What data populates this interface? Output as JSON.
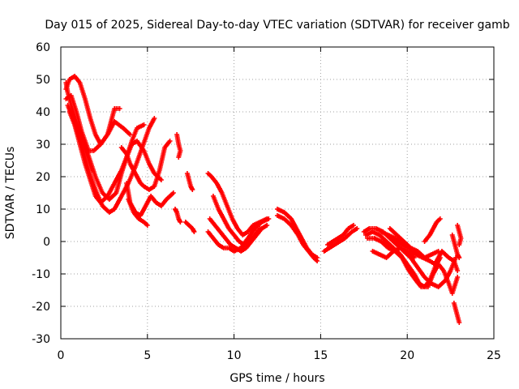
{
  "chart_data": {
    "type": "scatter",
    "title": "Day 015 of 2025, Sidereal Day-to-day VTEC variation (SDTVAR) for receiver gamb",
    "xlabel": "GPS time / hours",
    "ylabel": "SDTVAR / TECUs",
    "xlim": [
      0,
      25
    ],
    "ylim": [
      -30,
      60
    ],
    "xticks": [
      "0",
      "5",
      "10",
      "15",
      "20",
      "25"
    ],
    "yticks": [
      "-30",
      "-20",
      "-10",
      "0",
      "10",
      "20",
      "30",
      "40",
      "50",
      "60"
    ],
    "grid": true,
    "marker": "plus",
    "color": "#ff0000",
    "tracks": [
      [
        [
          0.3,
          49
        ],
        [
          0.4,
          46
        ],
        [
          0.6,
          42
        ],
        [
          0.9,
          37
        ],
        [
          1.2,
          32
        ],
        [
          1.5,
          27
        ],
        [
          1.8,
          22
        ]
      ],
      [
        [
          0.3,
          47
        ],
        [
          0.5,
          50
        ],
        [
          0.8,
          51
        ],
        [
          1.1,
          49
        ],
        [
          1.4,
          44
        ],
        [
          1.7,
          38
        ],
        [
          2.0,
          33
        ],
        [
          2.3,
          30
        ],
        [
          2.7,
          33
        ],
        [
          3.1,
          37
        ],
        [
          3.6,
          35
        ],
        [
          4.0,
          33
        ]
      ],
      [
        [
          0.3,
          44
        ],
        [
          0.6,
          45
        ],
        [
          0.9,
          40
        ],
        [
          1.2,
          34
        ],
        [
          1.6,
          28
        ],
        [
          1.9,
          28
        ],
        [
          2.3,
          30
        ],
        [
          2.7,
          33
        ],
        [
          3.1,
          41
        ],
        [
          3.4,
          41
        ]
      ],
      [
        [
          0.4,
          42
        ],
        [
          0.7,
          38
        ],
        [
          1.0,
          33
        ],
        [
          1.3,
          28
        ],
        [
          1.6,
          22
        ],
        [
          2.0,
          16
        ],
        [
          2.4,
          11
        ],
        [
          2.8,
          9
        ],
        [
          3.1,
          10
        ],
        [
          3.5,
          14
        ],
        [
          3.9,
          18
        ],
        [
          4.3,
          23
        ],
        [
          4.7,
          29
        ],
        [
          5.1,
          35
        ],
        [
          5.4,
          38
        ]
      ],
      [
        [
          0.5,
          40
        ],
        [
          0.8,
          36
        ],
        [
          1.1,
          30
        ],
        [
          1.4,
          24
        ],
        [
          1.7,
          19
        ],
        [
          2.0,
          14
        ],
        [
          2.3,
          12
        ],
        [
          2.7,
          14
        ],
        [
          3.1,
          18
        ],
        [
          3.5,
          22
        ],
        [
          3.8,
          26
        ],
        [
          4.1,
          31
        ],
        [
          4.4,
          35
        ],
        [
          4.8,
          36
        ]
      ],
      [
        [
          0.5,
          41
        ],
        [
          1.0,
          35
        ],
        [
          1.5,
          28
        ],
        [
          2.0,
          20
        ],
        [
          2.4,
          15
        ],
        [
          2.8,
          13
        ],
        [
          3.2,
          15
        ],
        [
          3.5,
          21
        ],
        [
          3.8,
          26
        ],
        [
          4.1,
          30
        ],
        [
          4.4,
          31
        ],
        [
          4.8,
          28
        ],
        [
          5.1,
          24
        ],
        [
          5.4,
          21
        ],
        [
          5.8,
          19
        ]
      ],
      [
        [
          3.5,
          29
        ],
        [
          3.8,
          27
        ],
        [
          4.0,
          24
        ],
        [
          4.3,
          21
        ],
        [
          4.6,
          18
        ],
        [
          4.8,
          17
        ],
        [
          5.1,
          16
        ],
        [
          5.4,
          17
        ],
        [
          5.7,
          22
        ],
        [
          6.0,
          29
        ],
        [
          6.3,
          31
        ]
      ],
      [
        [
          3.8,
          18
        ],
        [
          4.0,
          12
        ],
        [
          4.3,
          9
        ],
        [
          4.6,
          8
        ],
        [
          4.9,
          11
        ],
        [
          5.2,
          14
        ],
        [
          5.5,
          12
        ],
        [
          5.8,
          11
        ],
        [
          6.1,
          13
        ],
        [
          6.5,
          15
        ]
      ],
      [
        [
          3.9,
          13
        ],
        [
          4.2,
          9
        ],
        [
          4.5,
          7
        ],
        [
          4.8,
          6
        ],
        [
          5.0,
          5
        ]
      ],
      [
        [
          6.7,
          33
        ],
        [
          6.8,
          30
        ],
        [
          6.9,
          28
        ],
        [
          6.8,
          26
        ]
      ],
      [
        [
          6.6,
          10
        ],
        [
          6.7,
          9
        ],
        [
          6.8,
          7
        ],
        [
          6.9,
          6
        ]
      ],
      [
        [
          7.3,
          21
        ],
        [
          7.4,
          19
        ],
        [
          7.5,
          17
        ],
        [
          7.6,
          16
        ]
      ],
      [
        [
          7.2,
          6
        ],
        [
          7.4,
          5
        ],
        [
          7.6,
          4
        ],
        [
          7.7,
          3
        ]
      ],
      [
        [
          8.5,
          21
        ],
        [
          8.7,
          20
        ],
        [
          9.0,
          18
        ],
        [
          9.3,
          15
        ],
        [
          9.6,
          11
        ],
        [
          9.9,
          7
        ],
        [
          10.2,
          4
        ],
        [
          10.5,
          2
        ],
        [
          10.8,
          3
        ],
        [
          11.1,
          5
        ],
        [
          11.5,
          6
        ],
        [
          11.9,
          7
        ]
      ],
      [
        [
          8.8,
          14
        ],
        [
          9.1,
          10
        ],
        [
          9.4,
          7
        ],
        [
          9.7,
          4
        ],
        [
          10.0,
          2
        ],
        [
          10.3,
          0
        ],
        [
          10.6,
          -1
        ],
        [
          10.9,
          0
        ],
        [
          11.2,
          2
        ],
        [
          11.5,
          4
        ]
      ],
      [
        [
          8.6,
          7
        ],
        [
          8.9,
          5
        ],
        [
          9.2,
          3
        ],
        [
          9.5,
          1
        ],
        [
          9.8,
          -1
        ],
        [
          10.1,
          -2
        ],
        [
          10.4,
          -3
        ],
        [
          10.7,
          -2
        ],
        [
          11.0,
          0
        ],
        [
          11.3,
          2
        ],
        [
          11.6,
          4
        ],
        [
          11.9,
          5
        ]
      ],
      [
        [
          8.5,
          3
        ],
        [
          8.8,
          1
        ],
        [
          9.1,
          -1
        ],
        [
          9.4,
          -2
        ],
        [
          9.7,
          -2
        ],
        [
          10.0,
          -3
        ],
        [
          10.4,
          -2
        ],
        [
          10.8,
          1
        ],
        [
          11.2,
          4
        ],
        [
          11.6,
          6
        ],
        [
          12.0,
          7
        ]
      ],
      [
        [
          12.5,
          10
        ],
        [
          12.9,
          9
        ],
        [
          13.3,
          7
        ],
        [
          13.6,
          4
        ],
        [
          13.9,
          1
        ],
        [
          14.2,
          -2
        ],
        [
          14.5,
          -4
        ],
        [
          14.8,
          -5
        ]
      ],
      [
        [
          12.5,
          8
        ],
        [
          12.9,
          7
        ],
        [
          13.3,
          5
        ],
        [
          13.7,
          2
        ],
        [
          14.0,
          -1
        ],
        [
          14.3,
          -3
        ],
        [
          14.6,
          -5
        ],
        [
          14.8,
          -6
        ]
      ],
      [
        [
          15.2,
          -3
        ],
        [
          15.5,
          -2
        ],
        [
          15.8,
          -1
        ],
        [
          16.1,
          0
        ],
        [
          16.4,
          1
        ],
        [
          16.8,
          3
        ],
        [
          17.1,
          4
        ]
      ],
      [
        [
          15.4,
          -1
        ],
        [
          15.7,
          0
        ],
        [
          16.0,
          1
        ],
        [
          16.3,
          2
        ],
        [
          16.6,
          4
        ],
        [
          16.9,
          5
        ]
      ],
      [
        [
          17.5,
          3
        ],
        [
          17.8,
          4
        ],
        [
          18.2,
          4
        ],
        [
          18.6,
          3
        ],
        [
          19.0,
          1
        ],
        [
          19.4,
          -1
        ],
        [
          19.8,
          -3
        ],
        [
          20.2,
          -5
        ],
        [
          20.6,
          -8
        ],
        [
          21.0,
          -11
        ],
        [
          21.4,
          -13
        ],
        [
          21.8,
          -14
        ],
        [
          22.2,
          -12
        ],
        [
          22.5,
          -9
        ],
        [
          22.8,
          -5
        ]
      ],
      [
        [
          17.6,
          2
        ],
        [
          18.0,
          3
        ],
        [
          18.4,
          2
        ],
        [
          18.8,
          0
        ],
        [
          19.2,
          -2
        ],
        [
          19.6,
          -4
        ],
        [
          20.0,
          -7
        ],
        [
          20.4,
          -10
        ],
        [
          20.7,
          -13
        ],
        [
          21.0,
          -14
        ],
        [
          21.3,
          -12
        ],
        [
          21.6,
          -8
        ],
        [
          21.9,
          -5
        ]
      ],
      [
        [
          17.7,
          1
        ],
        [
          18.1,
          1
        ],
        [
          18.5,
          0
        ],
        [
          18.9,
          -2
        ],
        [
          19.3,
          -3
        ],
        [
          19.7,
          -5
        ],
        [
          20.1,
          -9
        ],
        [
          20.5,
          -12
        ],
        [
          20.8,
          -14
        ],
        [
          21.2,
          -14
        ],
        [
          21.5,
          -10
        ],
        [
          21.8,
          -7
        ],
        [
          22.1,
          -9
        ],
        [
          22.4,
          -13
        ],
        [
          22.6,
          -16
        ],
        [
          22.9,
          -11
        ]
      ],
      [
        [
          18.0,
          -3
        ],
        [
          18.4,
          -4
        ],
        [
          18.8,
          -5
        ],
        [
          19.2,
          -3
        ],
        [
          19.6,
          -2
        ],
        [
          20.0,
          -3
        ],
        [
          20.4,
          -5
        ]
      ],
      [
        [
          18.5,
          3
        ],
        [
          18.9,
          2
        ],
        [
          19.3,
          1
        ],
        [
          19.7,
          -1
        ],
        [
          20.1,
          -2
        ],
        [
          20.5,
          -4
        ],
        [
          20.9,
          -5
        ],
        [
          21.3,
          -6
        ],
        [
          21.6,
          -7
        ]
      ],
      [
        [
          19.0,
          4
        ],
        [
          19.4,
          2
        ],
        [
          19.8,
          0
        ],
        [
          20.2,
          -2
        ],
        [
          20.6,
          -3
        ],
        [
          21.0,
          -5
        ],
        [
          21.4,
          -4
        ],
        [
          21.8,
          -3
        ]
      ],
      [
        [
          21.0,
          0
        ],
        [
          21.3,
          2
        ],
        [
          21.5,
          4
        ],
        [
          21.7,
          6
        ],
        [
          21.9,
          7
        ]
      ],
      [
        [
          21.6,
          -7
        ],
        [
          21.8,
          -5
        ],
        [
          22.0,
          -3
        ],
        [
          22.2,
          -4
        ],
        [
          22.4,
          -5
        ],
        [
          22.7,
          -6
        ],
        [
          22.9,
          -9
        ]
      ],
      [
        [
          22.6,
          2
        ],
        [
          22.7,
          0
        ],
        [
          22.8,
          -2
        ],
        [
          22.9,
          -4
        ],
        [
          23.0,
          -5
        ]
      ],
      [
        [
          22.7,
          -19
        ],
        [
          22.8,
          -21
        ],
        [
          22.9,
          -23
        ],
        [
          23.0,
          -25
        ]
      ],
      [
        [
          22.9,
          5
        ],
        [
          23.0,
          3
        ],
        [
          23.1,
          1
        ],
        [
          23.0,
          -1
        ]
      ]
    ]
  }
}
